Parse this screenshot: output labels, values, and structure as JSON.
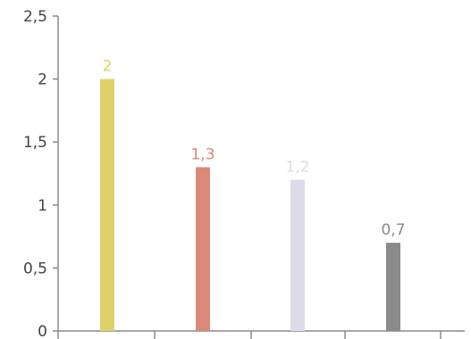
{
  "chart_data": {
    "type": "bar",
    "title": "",
    "xlabel": "",
    "ylabel": "",
    "categories": [
      "",
      "",
      "",
      ""
    ],
    "values": [
      2,
      1.3,
      1.2,
      0.7
    ],
    "data_labels": [
      "2",
      "1,3",
      "1,2",
      "0,7"
    ],
    "bar_colors": [
      "#e0d06a",
      "#d9887a",
      "#dedbe8",
      "#8a8a8a"
    ],
    "ylim": [
      0,
      2.5
    ],
    "yticks": [
      {
        "value": 0,
        "label": "0"
      },
      {
        "value": 0.5,
        "label": "0,5"
      },
      {
        "value": 1,
        "label": "1"
      },
      {
        "value": 1.5,
        "label": "1,5"
      },
      {
        "value": 2,
        "label": "2"
      },
      {
        "value": 2.5,
        "label": "2,5"
      }
    ],
    "grid": false,
    "legend": "none"
  }
}
